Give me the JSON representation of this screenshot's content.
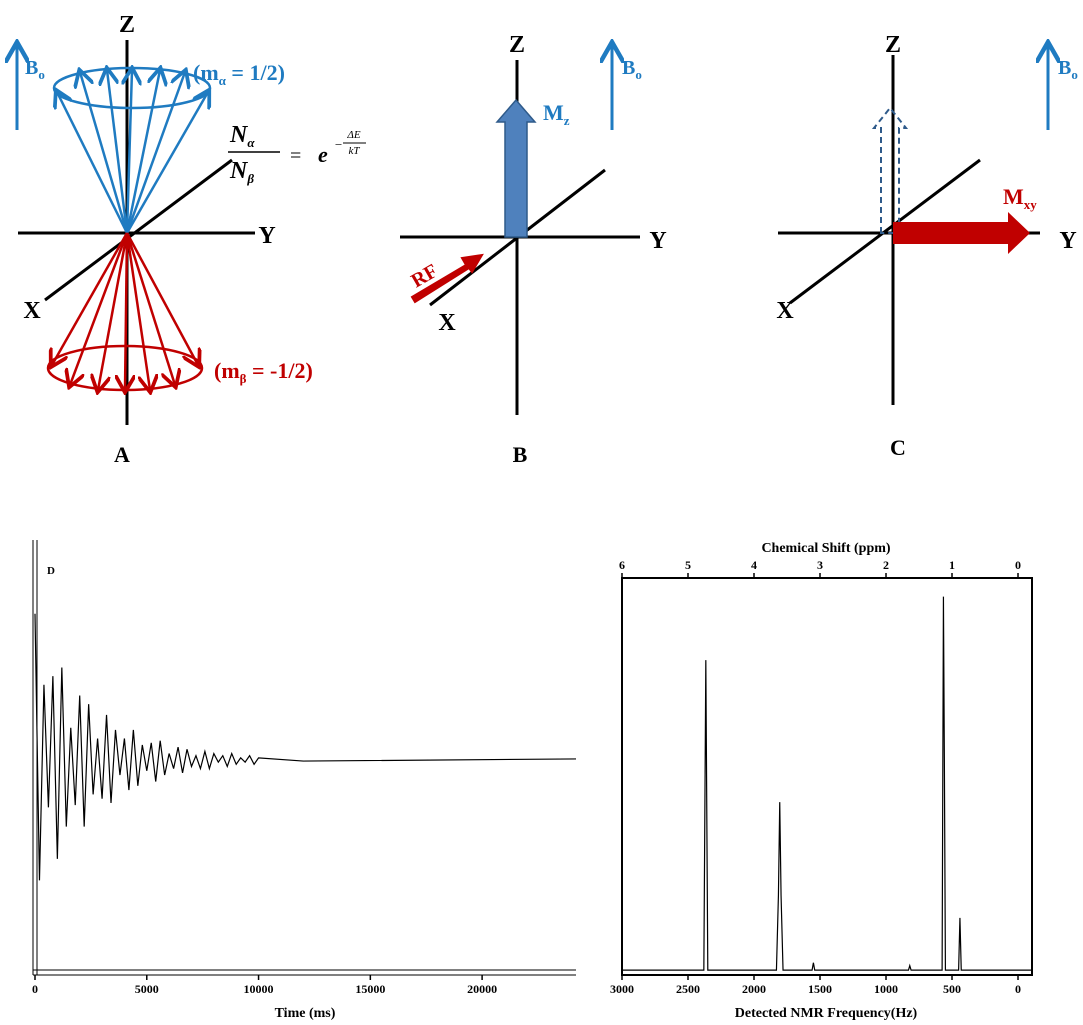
{
  "panels": [
    {
      "label": "A",
      "axis_z": "Z",
      "axis_y": "Y",
      "axis_x": "X",
      "field": "B",
      "field_sub": "o",
      "upper_state": {
        "open": "(m",
        "sub": "α",
        "close": " = 1/2)"
      },
      "lower_state": {
        "open": "(m",
        "sub": "β",
        "close": " = -1/2)"
      },
      "equation": {
        "numerator": "N",
        "numerator_sub": "α",
        "denominator": "N",
        "denominator_sub": "β",
        "equals": "=",
        "base": "e",
        "exponent_sign": "−",
        "exponent_numerator": "ΔE",
        "exponent_denominator": "kT"
      }
    },
    {
      "label": "B",
      "axis_z": "Z",
      "axis_y": "Y",
      "axis_x": "X",
      "field": "B",
      "field_sub": "o",
      "magnetization": "M",
      "magnetization_sub": "z",
      "pulse": "RF"
    },
    {
      "label": "C",
      "axis_z": "Z",
      "axis_y": "Y",
      "axis_x": "X",
      "field": "B",
      "field_sub": "o",
      "magnetization": "M",
      "magnetization_sub": "xy"
    }
  ],
  "chart_data": [
    {
      "type": "line",
      "label": "D",
      "xlabel": "Time (ms)",
      "color": "#000000",
      "x": [
        0,
        200,
        400,
        600,
        800,
        1000,
        1200,
        1400,
        1600,
        1800,
        2000,
        2200,
        2400,
        2600,
        2800,
        3000,
        3200,
        3400,
        3600,
        3800,
        4000,
        4200,
        4400,
        4600,
        4800,
        5000,
        5200,
        5400,
        5600,
        5800,
        6000,
        6200,
        6400,
        6600,
        6800,
        7000,
        7200,
        7400,
        7600,
        7800,
        8000,
        8200,
        8400,
        8600,
        8800,
        9000,
        9200,
        9400,
        9600,
        9800,
        10000,
        12000,
        24200
      ],
      "values": [
        0.68,
        -0.56,
        0.35,
        -0.22,
        0.39,
        -0.46,
        0.43,
        -0.31,
        0.15,
        -0.21,
        0.3,
        -0.31,
        0.26,
        -0.16,
        0.1,
        -0.18,
        0.21,
        -0.2,
        0.14,
        -0.07,
        0.1,
        -0.14,
        0.14,
        -0.12,
        0.07,
        -0.05,
        0.08,
        -0.1,
        0.09,
        -0.07,
        0.03,
        -0.04,
        0.06,
        -0.06,
        0.05,
        -0.03,
        0.02,
        -0.04,
        0.04,
        -0.04,
        0.03,
        -0.01,
        0.02,
        -0.03,
        0.03,
        -0.02,
        0.01,
        -0.01,
        0.02,
        -0.02,
        0.01,
        -0.005,
        0.005
      ],
      "xlim": [
        0,
        24200
      ],
      "ylim": [
        -1,
        1
      ],
      "xticks": [
        0,
        5000,
        10000,
        15000,
        20000
      ]
    },
    {
      "type": "line",
      "xlabel": "Detected NMR Frequency(Hz)",
      "x2label": "Chemical Shift (ppm)",
      "color": "#000000",
      "x": [
        3000,
        2380,
        2365,
        2350,
        1830,
        1815,
        1805,
        1795,
        1780,
        1560,
        1550,
        1540,
        830,
        820,
        810,
        575,
        565,
        558,
        550,
        450,
        440,
        430,
        -106
      ],
      "values": [
        0,
        0,
        0.83,
        0,
        0,
        0.2,
        0.45,
        0.2,
        0,
        0,
        0.02,
        0,
        0,
        0.012,
        0,
        0,
        1.0,
        0.57,
        0,
        0,
        0.14,
        0,
        0
      ],
      "xlim": [
        3000,
        -106
      ],
      "ylim": [
        -0.013,
        1.05
      ],
      "xticks": [
        3000,
        2500,
        2000,
        1500,
        1000,
        500,
        0
      ],
      "x2lim": [
        6,
        -0.212
      ],
      "x2ticks": [
        6,
        5,
        4,
        3,
        2,
        1,
        0
      ]
    }
  ]
}
